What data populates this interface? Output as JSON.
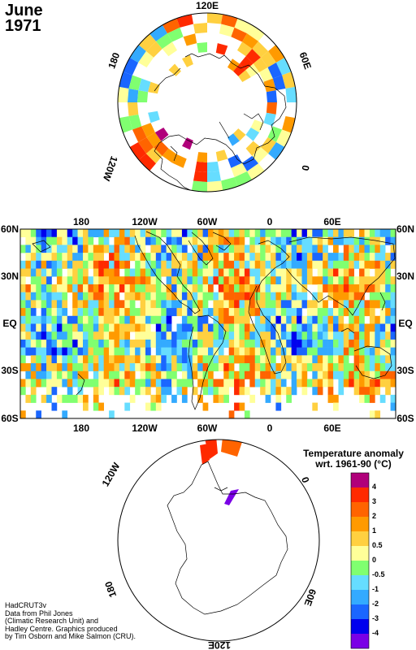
{
  "title": {
    "month": "June",
    "year": "1971"
  },
  "north_polar": {
    "lon_labels": {
      "top": "120E",
      "right": "60E",
      "bottom_right": "0",
      "bottom_left": "120W",
      "left": "180"
    }
  },
  "equirect": {
    "top_lon_labels": [
      "180",
      "120W",
      "60W",
      "0",
      "60E"
    ],
    "bottom_lon_labels": [
      "180",
      "120W",
      "60W",
      "0",
      "60E"
    ],
    "lat_labels": [
      "60N",
      "30N",
      "EQ",
      "30S",
      "60S"
    ]
  },
  "south_polar": {
    "lon_labels": {
      "top_left": "120W",
      "top_right": "0",
      "bottom_left": "180",
      "bottom_right": "60E",
      "bottom": "120E"
    }
  },
  "legend": {
    "title_line1": "Temperature anomaly",
    "title_line2": "wrt. 1961-90  (°C)",
    "levels": [
      "4",
      "3",
      "2",
      "1",
      "0.5",
      "0",
      "-0.5",
      "-1",
      "-2",
      "-3",
      "-4"
    ],
    "colors": [
      "#b0007a",
      "#ff2a00",
      "#ff6400",
      "#ff9a00",
      "#ffd040",
      "#ffff99",
      "#80ff70",
      "#66ddff",
      "#33aaff",
      "#1a66ff",
      "#0000ee",
      "#7a00e6"
    ]
  },
  "credit": {
    "line1": "HadCRUT3v",
    "line2": "Data from Phil Jones",
    "line3": "(Climatic Research Unit) and",
    "line4": "Hadley Centre.  Graphics produced",
    "line5": "by Tim Osborn and Mike Salmon (CRU)."
  }
}
